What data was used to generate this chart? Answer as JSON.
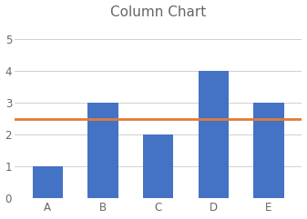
{
  "title": "Column Chart",
  "categories": [
    "A",
    "B",
    "C",
    "D",
    "E"
  ],
  "values": [
    1,
    3,
    2,
    4,
    3
  ],
  "bar_color": "#4472C4",
  "hline_y": 2.5,
  "hline_color": "#E07B39",
  "hline_linewidth": 2.0,
  "ylim": [
    0,
    5.5
  ],
  "yticks": [
    0,
    1,
    2,
    3,
    4,
    5
  ],
  "grid_color": "#D0D0D0",
  "title_fontsize": 11,
  "tick_fontsize": 8.5,
  "background_color": "#FFFFFF",
  "bar_width": 0.55,
  "title_color": "#666666",
  "tick_color": "#666666"
}
